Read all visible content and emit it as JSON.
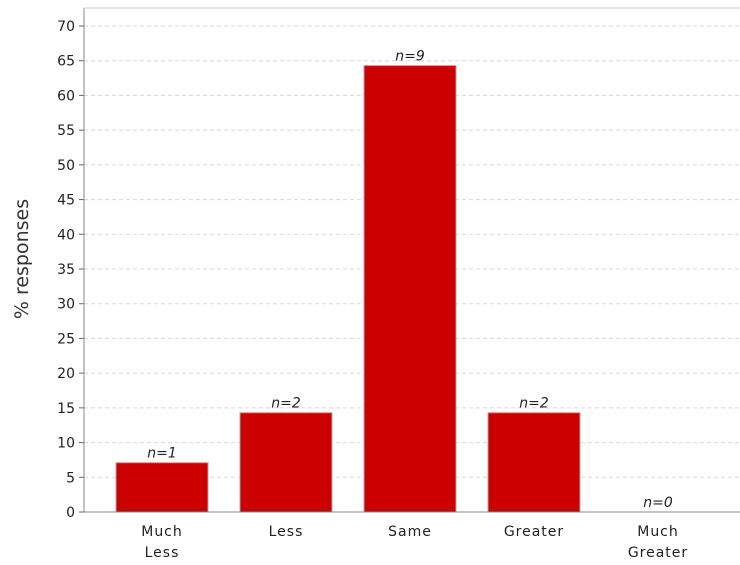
{
  "chart_data": {
    "type": "bar",
    "categories": [
      [
        "Much",
        "Less"
      ],
      [
        "Less"
      ],
      [
        "Same"
      ],
      [
        "Greater"
      ],
      [
        "Much",
        "Greater"
      ]
    ],
    "values": [
      7.1,
      14.3,
      64.3,
      14.3,
      0
    ],
    "data_labels": [
      "n=1",
      "n=2",
      "n=9",
      "n=2",
      "n=0"
    ],
    "ylabel": "% responses",
    "xlabel": "",
    "ylim": [
      0,
      70
    ],
    "ytick_step": 5,
    "grid": true,
    "bar_color": "#cc0000",
    "bar_edge_color": "#aaaaaa"
  }
}
